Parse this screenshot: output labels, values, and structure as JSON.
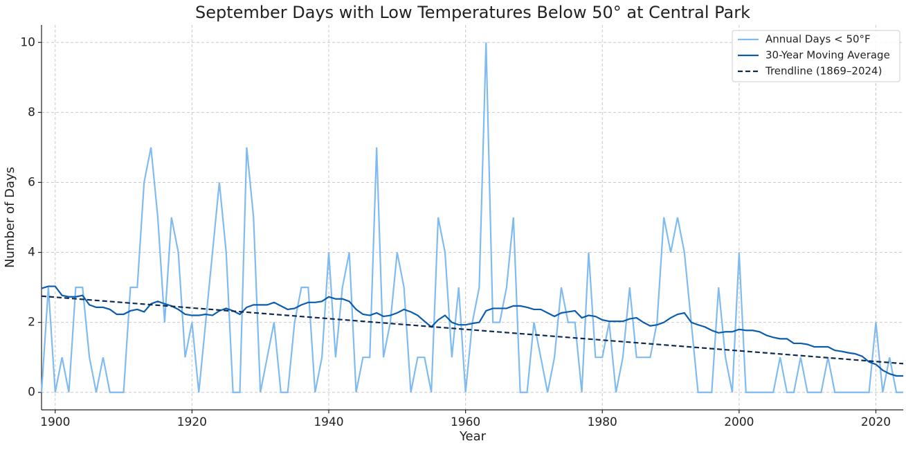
{
  "chart_data": {
    "type": "line",
    "title": "September Days with Low Temperatures Below 50° at Central Park",
    "x_label": "Year",
    "y_label": "Number of Days",
    "x": [
      1898,
      1899,
      1900,
      1901,
      1902,
      1903,
      1904,
      1905,
      1906,
      1907,
      1908,
      1909,
      1910,
      1911,
      1912,
      1913,
      1914,
      1915,
      1916,
      1917,
      1918,
      1919,
      1920,
      1921,
      1922,
      1923,
      1924,
      1925,
      1926,
      1927,
      1928,
      1929,
      1930,
      1931,
      1932,
      1933,
      1934,
      1935,
      1936,
      1937,
      1938,
      1939,
      1940,
      1941,
      1942,
      1943,
      1944,
      1945,
      1946,
      1947,
      1948,
      1949,
      1950,
      1951,
      1952,
      1953,
      1954,
      1955,
      1956,
      1957,
      1958,
      1959,
      1960,
      1961,
      1962,
      1963,
      1964,
      1965,
      1966,
      1967,
      1968,
      1969,
      1970,
      1971,
      1972,
      1973,
      1974,
      1975,
      1976,
      1977,
      1978,
      1979,
      1980,
      1981,
      1982,
      1983,
      1984,
      1985,
      1986,
      1987,
      1988,
      1989,
      1990,
      1991,
      1992,
      1993,
      1994,
      1995,
      1996,
      1997,
      1998,
      1999,
      2000,
      2001,
      2002,
      2003,
      2004,
      2005,
      2006,
      2007,
      2008,
      2009,
      2010,
      2011,
      2012,
      2013,
      2014,
      2015,
      2016,
      2017,
      2018,
      2019,
      2020,
      2021,
      2022,
      2023,
      2024
    ],
    "series": [
      {
        "name": "Annual Days < 50°F",
        "color": "#7fbbf0",
        "linestyle": "solid",
        "values": [
          0,
          3,
          0,
          1,
          0,
          3,
          3,
          1,
          0,
          1,
          0,
          0,
          0,
          3,
          3,
          6,
          7,
          5,
          2,
          5,
          4,
          1,
          2,
          0,
          2,
          4,
          6,
          4,
          0,
          0,
          7,
          5,
          0,
          1,
          2,
          0,
          0,
          2,
          3,
          3,
          0,
          1,
          4,
          1,
          3,
          4,
          0,
          1,
          1,
          7,
          1,
          2,
          4,
          3,
          0,
          1,
          1,
          0,
          5,
          4,
          1,
          3,
          0,
          2,
          3,
          10,
          2,
          2,
          3,
          5,
          0,
          0,
          2,
          1,
          0,
          1,
          3,
          2,
          2,
          0,
          4,
          1,
          1,
          2,
          0,
          1,
          3,
          1,
          1,
          1,
          2,
          5,
          4,
          5,
          4,
          2,
          0,
          0,
          0,
          3,
          1,
          0,
          4,
          0,
          0,
          0,
          0,
          0,
          1,
          0,
          0,
          1,
          0,
          0,
          0,
          1,
          0,
          0,
          0,
          0,
          0,
          0,
          2,
          0,
          1,
          0,
          0
        ]
      },
      {
        "name": "30-Year Moving Average",
        "color": "#0b5cad",
        "linestyle": "solid",
        "values": [
          2.97,
          3.03,
          3.03,
          2.77,
          2.73,
          2.73,
          2.77,
          2.5,
          2.43,
          2.43,
          2.37,
          2.23,
          2.23,
          2.33,
          2.37,
          2.3,
          2.53,
          2.6,
          2.53,
          2.47,
          2.37,
          2.23,
          2.2,
          2.2,
          2.23,
          2.2,
          2.33,
          2.4,
          2.33,
          2.23,
          2.43,
          2.5,
          2.5,
          2.5,
          2.57,
          2.47,
          2.37,
          2.4,
          2.5,
          2.57,
          2.57,
          2.6,
          2.73,
          2.67,
          2.67,
          2.6,
          2.37,
          2.23,
          2.2,
          2.27,
          2.17,
          2.2,
          2.27,
          2.37,
          2.3,
          2.2,
          2.03,
          1.87,
          2.07,
          2.2,
          2.0,
          1.93,
          1.93,
          1.97,
          2.0,
          2.33,
          2.4,
          2.4,
          2.4,
          2.47,
          2.47,
          2.43,
          2.37,
          2.37,
          2.27,
          2.17,
          2.27,
          2.3,
          2.33,
          2.13,
          2.2,
          2.17,
          2.07,
          2.03,
          2.03,
          2.03,
          2.1,
          2.13,
          2.0,
          1.9,
          1.93,
          2.0,
          2.13,
          2.23,
          2.27,
          2.0,
          1.93,
          1.87,
          1.77,
          1.7,
          1.73,
          1.73,
          1.8,
          1.77,
          1.77,
          1.73,
          1.63,
          1.57,
          1.53,
          1.53,
          1.4,
          1.4,
          1.37,
          1.3,
          1.3,
          1.3,
          1.2,
          1.17,
          1.13,
          1.1,
          1.03,
          0.87,
          0.8,
          0.63,
          0.53,
          0.47,
          0.47
        ]
      },
      {
        "name": "Trendline (1869–2024)",
        "color": "#0d2a4f",
        "linestyle": "dashed",
        "x": [
          1898,
          2024
        ],
        "values": [
          2.75,
          0.82
        ]
      }
    ],
    "xlim": [
      1898,
      2024
    ],
    "xticks": [
      1900,
      1920,
      1940,
      1960,
      1980,
      2000,
      2020
    ],
    "ylim": [
      -0.5,
      10.5
    ],
    "yticks": [
      0,
      2,
      4,
      6,
      8,
      10
    ],
    "grid": true,
    "legend": "upper right"
  }
}
